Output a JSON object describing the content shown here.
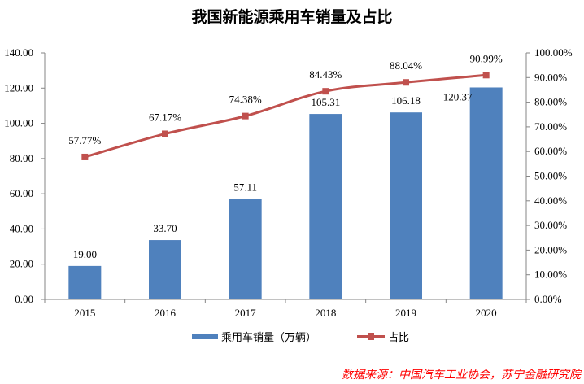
{
  "chart_data": {
    "type": "bar+line",
    "title": "我国新能源乘用车销量及占比",
    "categories": [
      "2015",
      "2016",
      "2017",
      "2018",
      "2019",
      "2020"
    ],
    "series": [
      {
        "name": "乘用车销量（万辆）",
        "type": "bar",
        "axis": "left",
        "values": [
          19.0,
          33.7,
          57.11,
          105.31,
          106.18,
          120.37
        ],
        "labels": [
          "19.00",
          "33.70",
          "57.11",
          "105.31",
          "106.18",
          "120.37"
        ],
        "color": "#4f81bd"
      },
      {
        "name": "占比",
        "type": "line",
        "axis": "right",
        "values": [
          57.77,
          67.17,
          74.38,
          84.43,
          88.04,
          90.99
        ],
        "labels": [
          "57.77%",
          "67.17%",
          "74.38%",
          "84.43%",
          "88.04%",
          "90.99%"
        ],
        "color": "#c0504d"
      }
    ],
    "y_left": {
      "range": [
        0,
        140
      ],
      "ticks": [
        "0.00",
        "20.00",
        "40.00",
        "60.00",
        "80.00",
        "100.00",
        "120.00",
        "140.00"
      ]
    },
    "y_right": {
      "range": [
        0,
        100
      ],
      "ticks": [
        "0.00%",
        "10.00%",
        "20.00%",
        "30.00%",
        "40.00%",
        "50.00%",
        "60.00%",
        "70.00%",
        "80.00%",
        "90.00%",
        "100.00%"
      ]
    },
    "grid": false,
    "legend": "bottom",
    "source": "数据来源：中国汽车工业协会，苏宁金融研究院"
  }
}
